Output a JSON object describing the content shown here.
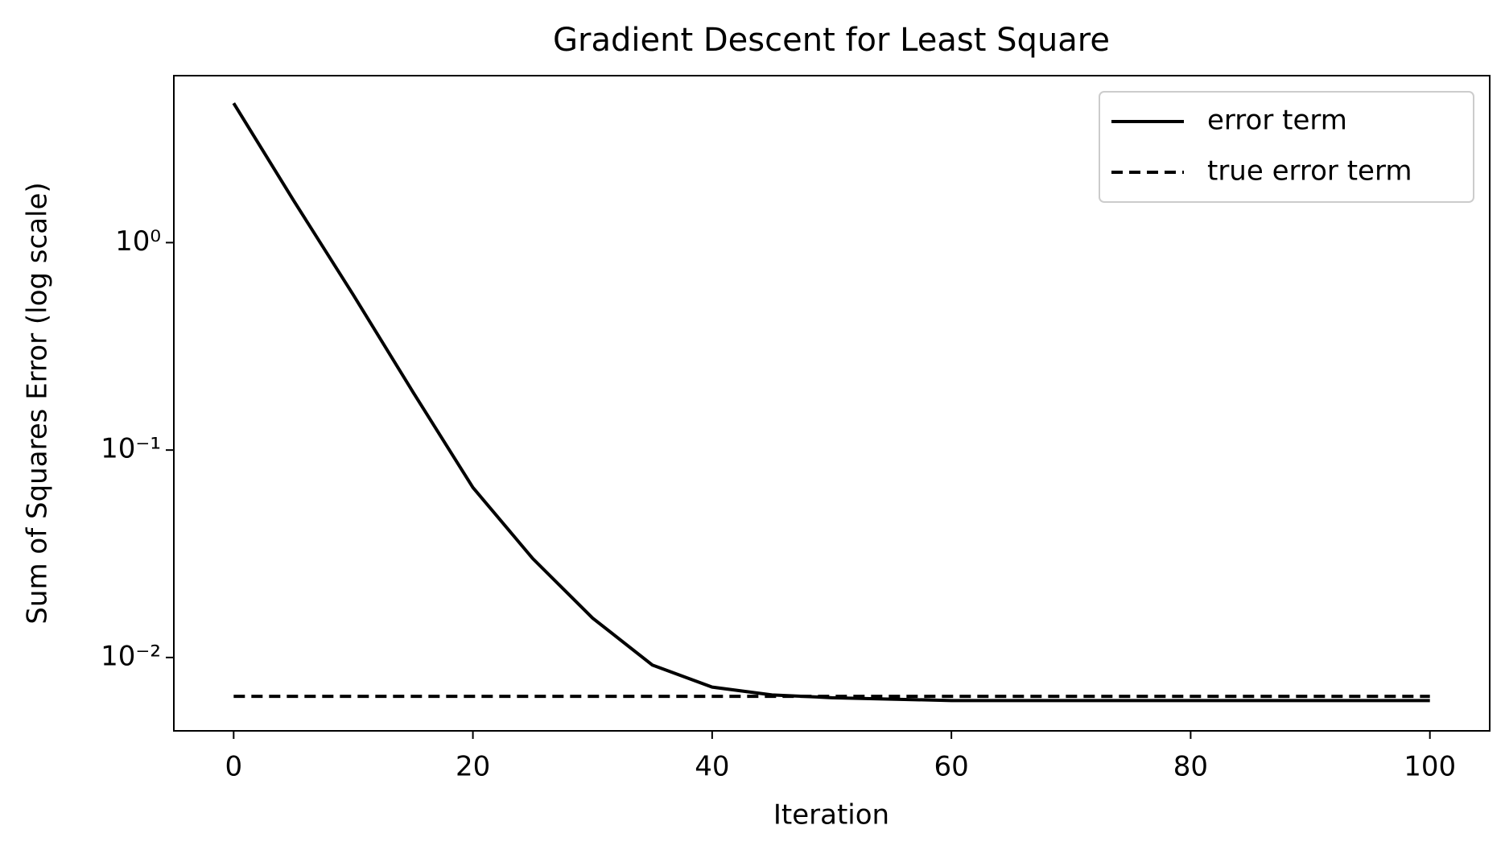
{
  "chart_data": {
    "type": "line",
    "title": "Gradient Descent for Least Square",
    "xlabel": "Iteration",
    "ylabel": "Sum of Squares Error (log scale)",
    "x": [
      0,
      5,
      10,
      15,
      20,
      25,
      30,
      35,
      40,
      45,
      50,
      55,
      60,
      65,
      70,
      75,
      80,
      85,
      90,
      95,
      100
    ],
    "series": [
      {
        "name": "error term",
        "color": "#000000",
        "linestyle": "solid",
        "values": [
          4.7,
          1.6,
          0.56,
          0.19,
          0.066,
          0.03,
          0.0155,
          0.0092,
          0.0072,
          0.0066,
          0.0064,
          0.0063,
          0.0062,
          0.0062,
          0.0062,
          0.0062,
          0.0062,
          0.0062,
          0.0062,
          0.0062,
          0.0062
        ]
      },
      {
        "name": "true error term",
        "color": "#000000",
        "linestyle": "dashed",
        "values": [
          0.0065,
          0.0065,
          0.0065,
          0.0065,
          0.0065,
          0.0065,
          0.0065,
          0.0065,
          0.0065,
          0.0065,
          0.0065,
          0.0065,
          0.0065,
          0.0065,
          0.0065,
          0.0065,
          0.0065,
          0.0065,
          0.0065,
          0.0065,
          0.0065
        ]
      }
    ],
    "xlim": [
      -5,
      105
    ],
    "xticks": [
      0,
      20,
      40,
      60,
      80,
      100
    ],
    "ylim": [
      0.00443,
      6.38
    ],
    "yscale": "log",
    "yticks": [
      {
        "value": 0.01,
        "label": "10⁻²"
      },
      {
        "value": 0.1,
        "label": "10⁻¹"
      },
      {
        "value": 1,
        "label": "10⁰"
      }
    ],
    "legend": "upper right",
    "grid": false
  }
}
